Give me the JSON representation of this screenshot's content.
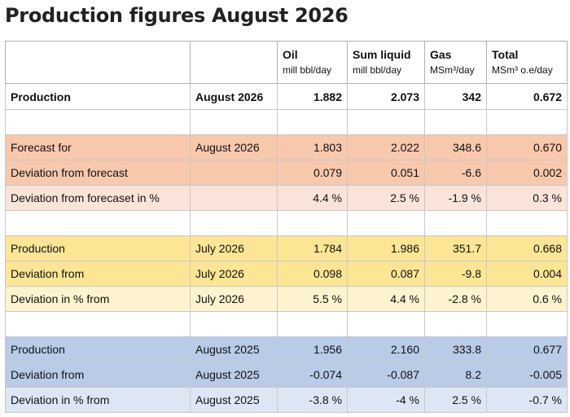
{
  "title": "Production figures August 2026",
  "headers": [
    {
      "main": "",
      "unit": ""
    },
    {
      "main": "",
      "unit": ""
    },
    {
      "main": "Oil",
      "unit": "mill bbl/day"
    },
    {
      "main": "Sum liquid",
      "unit": "mill bbl/day"
    },
    {
      "main": "Gas",
      "unit": "MSm³/day"
    },
    {
      "main": "Total",
      "unit": "MSm³ o.e/day"
    }
  ],
  "rows": [
    {
      "label": "Production",
      "period": "August 2026",
      "oil": "1.882",
      "liquid": "2.073",
      "gas": "342",
      "total": "0.672"
    },
    {
      "label": "",
      "period": "",
      "oil": "",
      "liquid": "",
      "gas": "",
      "total": ""
    },
    {
      "label": "Forecast for",
      "period": "August 2026",
      "oil": "1.803",
      "liquid": "2.022",
      "gas": "348.6",
      "total": "0.670"
    },
    {
      "label": "Deviation from forecast",
      "period": "",
      "oil": "0.079",
      "liquid": "0.051",
      "gas": "-6.6",
      "total": "0.002"
    },
    {
      "label": "Deviation from forecaset in %",
      "period": "",
      "oil": "4.4 %",
      "liquid": "2.5 %",
      "gas": "-1.9 %",
      "total": "0.3 %"
    },
    {
      "label": "",
      "period": "",
      "oil": "",
      "liquid": "",
      "gas": "",
      "total": ""
    },
    {
      "label": "Production",
      "period": "July 2026",
      "oil": "1.784",
      "liquid": "1.986",
      "gas": "351.7",
      "total": "0.668"
    },
    {
      "label": "Deviation from",
      "period": "July 2026",
      "oil": "0.098",
      "liquid": "0.087",
      "gas": "-9.8",
      "total": "0.004"
    },
    {
      "label": "Deviation in % from",
      "period": "July 2026",
      "oil": "5.5 %",
      "liquid": "4.4 %",
      "gas": "-2.8 %",
      "total": "0.6 %"
    },
    {
      "label": "",
      "period": "",
      "oil": "",
      "liquid": "",
      "gas": "",
      "total": ""
    },
    {
      "label": "Production",
      "period": "August 2025",
      "oil": "1.956",
      "liquid": "2.160",
      "gas": "333.8",
      "total": "0.677"
    },
    {
      "label": "Deviation from",
      "period": "August 2025",
      "oil": "-0.074",
      "liquid": "-0.087",
      "gas": "8.2",
      "total": "-0.005"
    },
    {
      "label": "Deviation in % from",
      "period": "August 2025",
      "oil": "-3.8 %",
      "liquid": "-4 %",
      "gas": "2.5 %",
      "total": "-0.7 %"
    }
  ]
}
